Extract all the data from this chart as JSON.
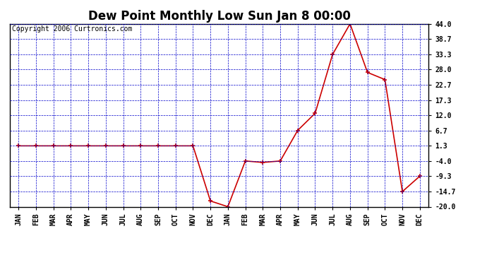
{
  "title": "Dew Point Monthly Low Sun Jan 8 00:00",
  "copyright": "Copyright 2006 Curtronics.com",
  "x_labels": [
    "JAN",
    "FEB",
    "MAR",
    "APR",
    "MAY",
    "JUN",
    "JUL",
    "AUG",
    "SEP",
    "OCT",
    "NOV",
    "DEC",
    "JAN",
    "FEB",
    "MAR",
    "APR",
    "MAY",
    "JUN",
    "JUL",
    "AUG",
    "SEP",
    "OCT",
    "NOV",
    "DEC"
  ],
  "y_values": [
    1.3,
    1.3,
    1.3,
    1.3,
    1.3,
    1.3,
    1.3,
    1.3,
    1.3,
    1.3,
    1.3,
    -18.0,
    -20.0,
    -4.0,
    -4.5,
    -4.0,
    6.7,
    12.7,
    33.3,
    44.0,
    27.0,
    24.5,
    -14.7,
    -9.3
  ],
  "ylim": [
    -20.0,
    44.0
  ],
  "yticks": [
    -20.0,
    -14.7,
    -9.3,
    -4.0,
    1.3,
    6.7,
    12.0,
    17.3,
    22.7,
    28.0,
    33.3,
    38.7,
    44.0
  ],
  "ytick_labels": [
    "-20.0",
    "-14.7",
    "-9.3",
    "-4.0",
    "1.3",
    "6.7",
    "12.0",
    "17.3",
    "22.7",
    "28.0",
    "33.3",
    "38.7",
    "44.0"
  ],
  "line_color": "#cc0000",
  "marker_color": "#cc0000",
  "bg_color": "#ffffff",
  "plot_bg_color": "#ffffff",
  "grid_color": "#0000cc",
  "title_fontsize": 12,
  "copyright_fontsize": 7
}
